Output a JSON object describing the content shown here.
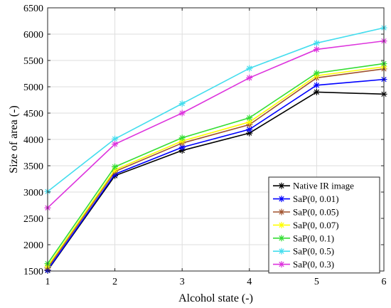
{
  "chart_data": {
    "type": "line",
    "title": "",
    "xlabel": "Alcohol state (-)",
    "ylabel": "Size of area (-)",
    "x": [
      1,
      2,
      3,
      4,
      5,
      6
    ],
    "xlim": [
      1,
      6
    ],
    "ylim": [
      1500,
      6500
    ],
    "xticks": [
      1,
      2,
      3,
      4,
      5,
      6
    ],
    "yticks": [
      1500,
      2000,
      2500,
      3000,
      3500,
      4000,
      4500,
      5000,
      5500,
      6000,
      6500
    ],
    "grid": true,
    "legend_position": "bottom-right",
    "marker": "asterisk",
    "series": [
      {
        "name": "Native IR image",
        "color": "#000000",
        "values": [
          1510,
          3310,
          3790,
          4120,
          4900,
          4860
        ]
      },
      {
        "name": "SaP(0, 0.01)",
        "color": "#0000ff",
        "values": [
          1520,
          3340,
          3850,
          4190,
          5030,
          5140
        ]
      },
      {
        "name": "SaP(0, 0.05)",
        "color": "#a0522d",
        "values": [
          1560,
          3390,
          3930,
          4280,
          5170,
          5340
        ]
      },
      {
        "name": "SaP(0, 0.07)",
        "color": "#ffff00",
        "values": [
          1590,
          3420,
          3970,
          4330,
          5210,
          5380
        ]
      },
      {
        "name": "SaP(0, 0.1)",
        "color": "#33dd33",
        "values": [
          1640,
          3480,
          4030,
          4410,
          5260,
          5440
        ]
      },
      {
        "name": "SaP(0, 0.5)",
        "color": "#44ddee",
        "values": [
          3010,
          4010,
          4680,
          5350,
          5830,
          6120
        ]
      },
      {
        "name": "SaP(0, 0.3)",
        "color": "#dd33dd",
        "values": [
          2700,
          3910,
          4500,
          5170,
          5710,
          5870
        ]
      }
    ]
  }
}
